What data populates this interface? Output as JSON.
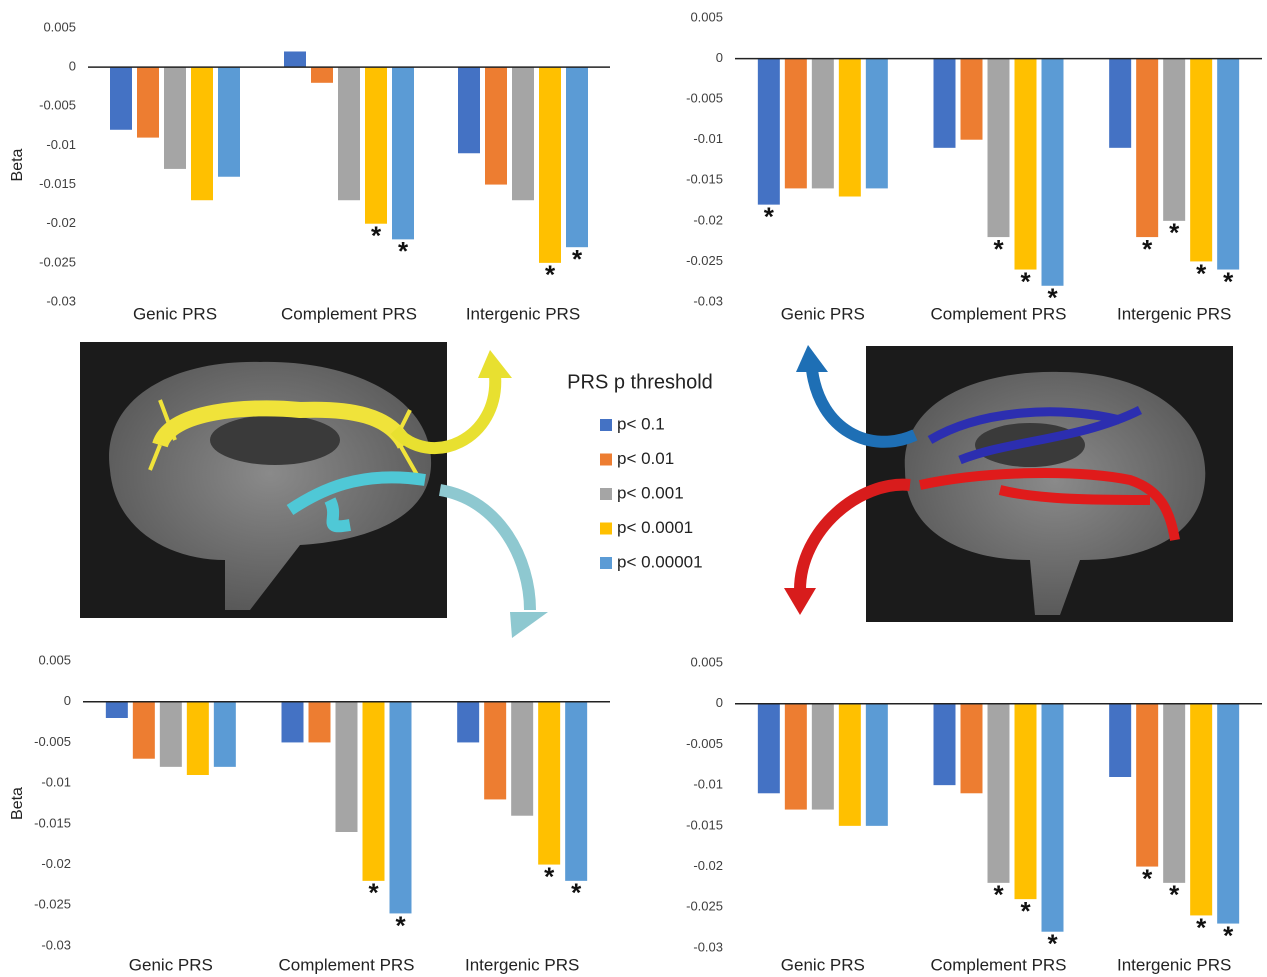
{
  "chart_data": [
    {
      "type": "bar",
      "ylabel": "Beta",
      "legend_title": "PRS p threshold",
      "categories": [
        "Genic PRS",
        "Complement PRS",
        "Intergenic PRS"
      ],
      "ylim": [
        -0.03,
        0.005
      ],
      "yticks": [
        0.005,
        0,
        -0.005,
        -0.01,
        -0.015,
        -0.02,
        -0.025,
        -0.03
      ],
      "grid": false,
      "series": [
        {
          "name": "p< 0.1",
          "color": "#4472c4",
          "values": [
            -0.008,
            0.002,
            -0.011
          ],
          "significance": [
            null,
            null,
            null
          ]
        },
        {
          "name": "p< 0.01",
          "color": "#ed7d31",
          "values": [
            -0.009,
            -0.002,
            -0.015
          ],
          "significance": [
            null,
            null,
            null
          ]
        },
        {
          "name": "p< 0.001",
          "color": "#a5a5a5",
          "values": [
            -0.013,
            -0.017,
            -0.017
          ],
          "significance": [
            null,
            null,
            null
          ]
        },
        {
          "name": "p< 0.0001",
          "color": "#ffc000",
          "values": [
            -0.017,
            -0.02,
            -0.025
          ],
          "significance": [
            null,
            "*",
            "*"
          ]
        },
        {
          "name": "p< 0.00001",
          "color": "#5b9bd5",
          "values": [
            -0.014,
            -0.022,
            -0.023
          ],
          "significance": [
            null,
            "*",
            "*"
          ]
        }
      ]
    },
    {
      "type": "bar",
      "categories": [
        "Genic PRS",
        "Complement PRS",
        "Intergenic PRS"
      ],
      "ylim": [
        -0.03,
        0.005
      ],
      "yticks": [
        0.005,
        0,
        -0.005,
        -0.01,
        -0.015,
        -0.02,
        -0.025,
        -0.03
      ],
      "grid": false,
      "series": [
        {
          "color": "#4472c4",
          "values": [
            -0.018,
            -0.011,
            -0.011
          ],
          "significance": [
            "*",
            null,
            null
          ]
        },
        {
          "color": "#ed7d31",
          "values": [
            -0.016,
            -0.01,
            -0.022
          ],
          "significance": [
            null,
            null,
            "*"
          ]
        },
        {
          "color": "#a5a5a5",
          "values": [
            -0.016,
            -0.022,
            -0.02
          ],
          "significance": [
            null,
            "*",
            "*"
          ]
        },
        {
          "color": "#ffc000",
          "values": [
            -0.017,
            -0.026,
            -0.025
          ],
          "significance": [
            null,
            "*",
            "*"
          ]
        },
        {
          "color": "#5b9bd5",
          "values": [
            -0.016,
            -0.028,
            -0.026
          ],
          "significance": [
            null,
            "*",
            "*"
          ]
        }
      ]
    },
    {
      "type": "bar",
      "ylabel": "Beta",
      "categories": [
        "Genic PRS",
        "Complement PRS",
        "Intergenic PRS"
      ],
      "ylim": [
        -0.03,
        0.005
      ],
      "yticks": [
        0.005,
        0,
        -0.005,
        -0.01,
        -0.015,
        -0.02,
        -0.025,
        -0.03
      ],
      "grid": false,
      "series": [
        {
          "color": "#4472c4",
          "values": [
            -0.002,
            -0.005,
            -0.005
          ],
          "significance": [
            null,
            null,
            null
          ]
        },
        {
          "color": "#ed7d31",
          "values": [
            -0.007,
            -0.005,
            -0.012
          ],
          "significance": [
            null,
            null,
            null
          ]
        },
        {
          "color": "#a5a5a5",
          "values": [
            -0.008,
            -0.016,
            -0.014
          ],
          "significance": [
            null,
            null,
            null
          ]
        },
        {
          "color": "#ffc000",
          "values": [
            -0.009,
            -0.022,
            -0.02
          ],
          "significance": [
            null,
            "*",
            "*"
          ]
        },
        {
          "color": "#5b9bd5",
          "values": [
            -0.008,
            -0.026,
            -0.022
          ],
          "significance": [
            null,
            "*",
            "*"
          ]
        }
      ]
    },
    {
      "type": "bar",
      "categories": [
        "Genic PRS",
        "Complement PRS",
        "Intergenic PRS"
      ],
      "ylim": [
        -0.03,
        0.005
      ],
      "yticks": [
        0.005,
        0,
        -0.005,
        -0.01,
        -0.015,
        -0.02,
        -0.025,
        -0.03
      ],
      "grid": false,
      "series": [
        {
          "color": "#4472c4",
          "values": [
            -0.011,
            -0.01,
            -0.009
          ],
          "significance": [
            null,
            null,
            null
          ]
        },
        {
          "color": "#ed7d31",
          "values": [
            -0.013,
            -0.011,
            -0.02
          ],
          "significance": [
            null,
            null,
            "*"
          ]
        },
        {
          "color": "#a5a5a5",
          "values": [
            -0.013,
            -0.022,
            -0.022
          ],
          "significance": [
            null,
            "*",
            "*"
          ]
        },
        {
          "color": "#ffc000",
          "values": [
            -0.015,
            -0.024,
            -0.026
          ],
          "significance": [
            null,
            "*",
            "*"
          ]
        },
        {
          "color": "#5b9bd5",
          "values": [
            -0.015,
            -0.028,
            -0.027
          ],
          "significance": [
            null,
            "*",
            "*"
          ]
        }
      ]
    }
  ]
}
